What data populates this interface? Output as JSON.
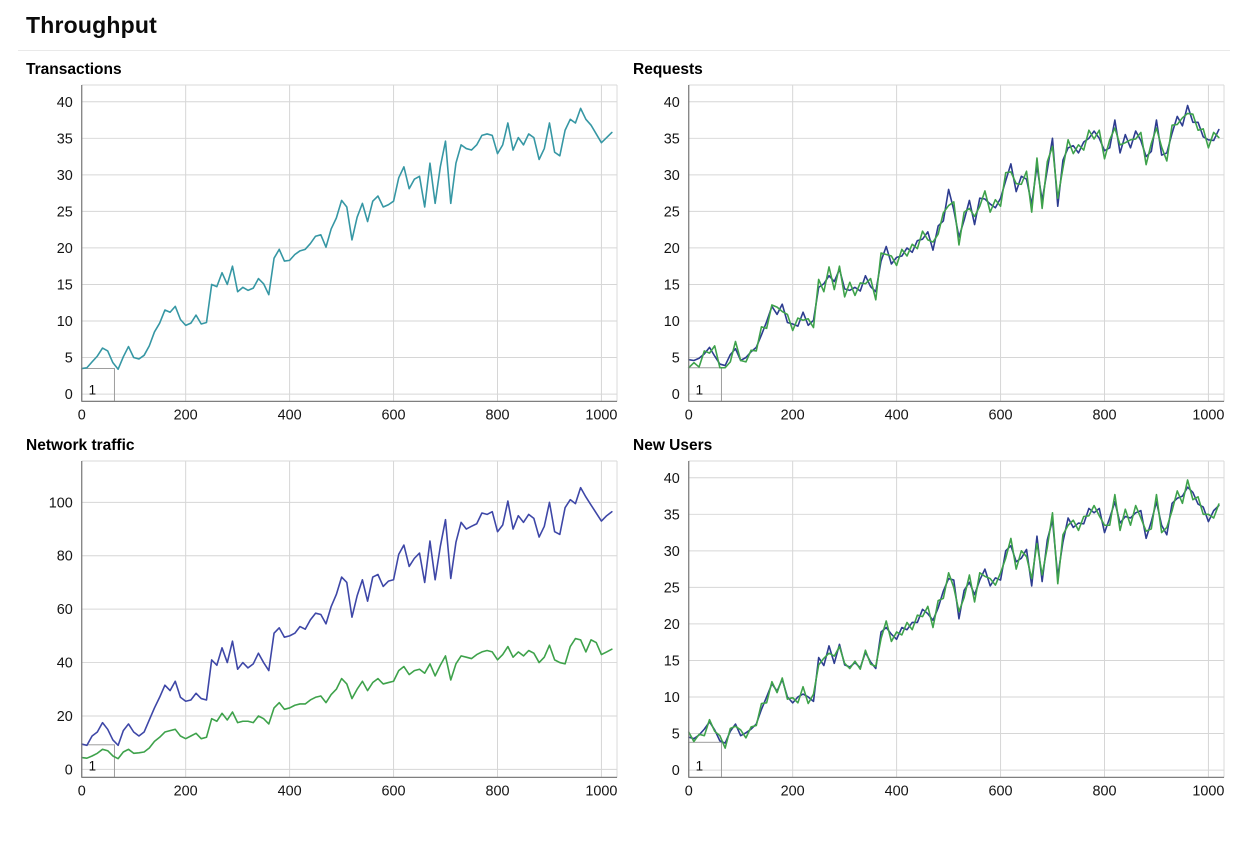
{
  "page": {
    "title": "Throughput"
  },
  "chart_data": [
    {
      "id": "transactions",
      "title": "Transactions",
      "type": "line",
      "grid": true,
      "legend": null,
      "x_axis": {
        "min": 0,
        "max": 1030,
        "ticks": [
          0,
          200,
          400,
          600,
          800,
          1000
        ]
      },
      "y_axis": {
        "min": -1,
        "max": 42.3,
        "ticks": [
          0,
          5,
          10,
          15,
          20,
          25,
          30,
          35,
          40
        ]
      },
      "region": {
        "label": "1",
        "x_start": 0,
        "x_end": 63,
        "y_top": 3.5
      },
      "x_start": 0,
      "x_step": 10,
      "series": [
        {
          "name": "series-1",
          "color": "#3697a4",
          "values": [
            3.5,
            3.6,
            4.4,
            5.2,
            6.3,
            5.9,
            4.3,
            3.4,
            5.1,
            6.5,
            5.0,
            4.8,
            5.3,
            6.6,
            8.5,
            9.7,
            11.5,
            11.2,
            12.0,
            10.2,
            9.4,
            9.7,
            10.8,
            9.6,
            9.8,
            15.0,
            14.7,
            16.6,
            15.0,
            17.5,
            14.0,
            14.6,
            14.2,
            14.5,
            15.8,
            15.1,
            13.6,
            18.6,
            19.8,
            18.2,
            18.3,
            19.1,
            19.6,
            19.8,
            20.6,
            21.6,
            21.8,
            20.1,
            22.6,
            24.1,
            26.5,
            25.6,
            21.1,
            24.2,
            26.1,
            23.6,
            26.4,
            27.1,
            25.6,
            25.9,
            26.4,
            29.6,
            31.1,
            28.1,
            29.4,
            29.8,
            25.6,
            31.6,
            26.1,
            31.1,
            34.6,
            26.1,
            31.6,
            34.1,
            33.6,
            33.4,
            34.1,
            35.4,
            35.6,
            35.4,
            32.9,
            34.1,
            37.1,
            33.4,
            35.1,
            34.1,
            35.6,
            35.1,
            32.1,
            33.6,
            37.1,
            33.1,
            32.6,
            36.1,
            37.6,
            37.1,
            39.1,
            37.6,
            36.8,
            35.6,
            34.4,
            35.1,
            35.8
          ]
        }
      ]
    },
    {
      "id": "requests",
      "title": "Requests",
      "type": "line",
      "grid": true,
      "legend": null,
      "x_axis": {
        "min": 0,
        "max": 1030,
        "ticks": [
          0,
          200,
          400,
          600,
          800,
          1000
        ]
      },
      "y_axis": {
        "min": -1,
        "max": 42.3,
        "ticks": [
          0,
          5,
          10,
          15,
          20,
          25,
          30,
          35,
          40
        ]
      },
      "region": {
        "label": "1",
        "x_start": 0,
        "x_end": 63,
        "y_top": 3.6
      },
      "x_start": 0,
      "x_step": 10,
      "series": [
        {
          "name": "series-1",
          "color": "#2d3c90",
          "values": [
            4.7,
            4.6,
            4.9,
            5.5,
            6.4,
            5.2,
            4.1,
            3.9,
            5.4,
            6.2,
            4.6,
            5.0,
            5.8,
            6.4,
            8.1,
            9.9,
            12.0,
            10.9,
            12.3,
            9.8,
            9.6,
            9.3,
            11.2,
            9.4,
            10.1,
            14.6,
            15.1,
            16.2,
            15.4,
            17.1,
            14.4,
            14.2,
            14.6,
            14.1,
            16.2,
            14.7,
            14.0,
            18.2,
            20.2,
            17.8,
            18.7,
            18.9,
            20.0,
            19.4,
            21.0,
            21.2,
            22.2,
            19.7,
            23.0,
            23.7,
            28.0,
            25.2,
            21.5,
            23.8,
            26.5,
            23.2,
            26.8,
            26.7,
            26.0,
            25.5,
            26.8,
            29.2,
            31.5,
            27.7,
            29.8,
            29.4,
            26.0,
            31.2,
            26.5,
            30.7,
            35.0,
            25.7,
            32.0,
            33.7,
            34.0,
            33.0,
            34.5,
            35.0,
            36.0,
            35.0,
            33.3,
            33.7,
            37.5,
            33.0,
            35.5,
            33.7,
            36.0,
            34.7,
            32.5,
            33.2,
            37.5,
            32.7,
            33.0,
            35.7,
            38.0,
            36.7,
            39.5,
            37.2,
            37.2,
            35.2,
            34.8,
            34.7,
            36.2
          ]
        },
        {
          "name": "series-2",
          "color": "#3ea24b",
          "values": [
            3.6,
            4.3,
            3.7,
            5.9,
            5.6,
            6.6,
            3.6,
            3.6,
            4.4,
            7.2,
            4.6,
            4.4,
            6.0,
            5.9,
            9.2,
            9.0,
            12.2,
            11.9,
            11.3,
            10.9,
            8.7,
            10.4,
            10.1,
            10.3,
            9.1,
            15.7,
            14.0,
            17.4,
            14.3,
            17.5,
            13.3,
            15.3,
            13.5,
            15.2,
            15.1,
            15.8,
            12.9,
            19.3,
            19.1,
            18.9,
            17.6,
            19.8,
            18.9,
            20.5,
            19.9,
            22.3,
            21.1,
            20.8,
            21.9,
            24.8,
            25.8,
            26.3,
            20.4,
            24.9,
            25.4,
            24.3,
            25.7,
            27.8,
            24.9,
            26.6,
            25.7,
            30.3,
            30.4,
            28.8,
            28.7,
            30.5,
            24.9,
            32.3,
            25.4,
            31.8,
            33.9,
            26.8,
            30.9,
            34.8,
            32.9,
            34.1,
            33.4,
            36.1,
            34.9,
            36.1,
            32.2,
            34.8,
            36.4,
            34.1,
            34.4,
            34.8,
            34.9,
            35.8,
            31.4,
            34.3,
            36.4,
            33.8,
            31.9,
            36.8,
            36.9,
            37.8,
            38.4,
            38.3,
            36.1,
            36.3,
            33.7,
            35.8,
            35.1
          ]
        }
      ]
    },
    {
      "id": "network-traffic",
      "title": "Network traffic",
      "type": "line",
      "grid": true,
      "legend": null,
      "x_axis": {
        "min": 0,
        "max": 1030,
        "ticks": [
          0,
          200,
          400,
          600,
          800,
          1000
        ]
      },
      "y_axis": {
        "min": -3,
        "max": 115.5,
        "ticks": [
          0,
          20,
          40,
          60,
          80,
          100
        ]
      },
      "region": {
        "label": "1",
        "x_start": 0,
        "x_end": 63,
        "y_top": 9.2
      },
      "x_start": 0,
      "x_step": 10,
      "series": [
        {
          "name": "series-1",
          "color": "#3e47a7",
          "values": [
            9.5,
            9.0,
            12.5,
            14.0,
            17.5,
            15.0,
            11.0,
            9.0,
            14.5,
            17.0,
            14.0,
            12.5,
            14.0,
            18.5,
            23.0,
            27.0,
            31.5,
            29.5,
            33.0,
            27.0,
            25.5,
            26.0,
            28.5,
            26.5,
            26.0,
            41.0,
            39.0,
            45.5,
            40.0,
            48.0,
            37.5,
            40.0,
            38.0,
            39.5,
            43.5,
            40.0,
            37.0,
            51.0,
            53.0,
            49.5,
            50.0,
            51.0,
            53.5,
            52.5,
            56.0,
            58.5,
            58.0,
            54.5,
            61.0,
            65.5,
            72.0,
            70.0,
            57.0,
            65.0,
            71.0,
            63.0,
            72.0,
            73.0,
            68.5,
            70.5,
            71.0,
            80.5,
            84.0,
            76.0,
            79.0,
            81.0,
            70.0,
            85.5,
            71.0,
            83.5,
            93.5,
            71.5,
            85.0,
            92.5,
            90.0,
            91.0,
            92.0,
            96.0,
            95.5,
            96.5,
            89.0,
            91.5,
            100.5,
            90.0,
            95.0,
            92.5,
            95.5,
            94.0,
            87.0,
            91.0,
            100.0,
            89.0,
            88.0,
            98.0,
            101.0,
            99.5,
            105.5,
            102.0,
            99.0,
            96.0,
            93.0,
            95.0,
            96.5
          ]
        },
        {
          "name": "series-2",
          "color": "#3ea24b",
          "values": [
            4.4,
            4.2,
            5.0,
            6.0,
            7.5,
            7.0,
            5.0,
            4.0,
            6.5,
            7.5,
            6.0,
            6.2,
            6.5,
            8.0,
            10.5,
            12.0,
            14.0,
            14.5,
            15.0,
            12.5,
            11.5,
            12.5,
            13.5,
            11.5,
            12.0,
            19.0,
            18.0,
            21.0,
            18.5,
            21.5,
            17.5,
            18.0,
            18.0,
            17.5,
            20.0,
            19.0,
            17.0,
            23.0,
            25.0,
            22.5,
            23.0,
            24.0,
            24.5,
            24.5,
            26.0,
            27.0,
            27.5,
            25.0,
            28.0,
            30.0,
            34.0,
            32.0,
            26.5,
            30.0,
            33.0,
            29.5,
            32.5,
            34.0,
            32.0,
            32.5,
            33.0,
            37.0,
            38.5,
            35.5,
            37.0,
            37.5,
            36.0,
            39.5,
            35.0,
            39.0,
            42.5,
            33.5,
            39.5,
            42.5,
            42.0,
            41.5,
            43.0,
            44.0,
            44.5,
            44.0,
            41.0,
            43.0,
            46.0,
            42.0,
            44.0,
            42.5,
            44.5,
            43.5,
            40.0,
            42.0,
            46.5,
            41.0,
            40.0,
            39.5,
            46.0,
            49.0,
            48.5,
            44.0,
            48.5,
            47.5,
            43.0,
            44.0,
            45.0
          ]
        }
      ]
    },
    {
      "id": "new-users",
      "title": "New Users",
      "type": "line",
      "grid": true,
      "legend": null,
      "x_axis": {
        "min": 0,
        "max": 1030,
        "ticks": [
          0,
          200,
          400,
          600,
          800,
          1000
        ]
      },
      "y_axis": {
        "min": -1,
        "max": 42.3,
        "ticks": [
          0,
          5,
          10,
          15,
          20,
          25,
          30,
          35,
          40
        ]
      },
      "region": {
        "label": "1",
        "x_start": 0,
        "x_end": 63,
        "y_top": 3.8
      },
      "x_start": 0,
      "x_step": 10,
      "series": [
        {
          "name": "series-1",
          "color": "#2d3c90",
          "values": [
            4.5,
            4.3,
            4.8,
            5.6,
            6.6,
            5.5,
            4.0,
            3.7,
            5.3,
            6.3,
            4.7,
            5.1,
            5.6,
            6.3,
            8.3,
            10.0,
            11.8,
            10.8,
            12.4,
            10.0,
            9.2,
            10.0,
            10.4,
            10.0,
            9.4,
            15.4,
            14.3,
            17.0,
            14.6,
            17.2,
            14.4,
            14.1,
            14.7,
            14.0,
            16.1,
            14.8,
            13.9,
            18.9,
            19.5,
            18.6,
            17.9,
            19.5,
            19.2,
            20.2,
            20.2,
            22.0,
            21.4,
            20.5,
            22.2,
            24.5,
            26.2,
            26.0,
            20.7,
            24.6,
            25.7,
            24.0,
            26.0,
            27.5,
            25.2,
            26.3,
            26.0,
            30.0,
            30.7,
            28.5,
            29.0,
            30.2,
            25.2,
            32.0,
            25.8,
            31.5,
            34.2,
            26.5,
            31.2,
            34.5,
            33.2,
            33.8,
            33.7,
            35.8,
            35.2,
            35.8,
            32.5,
            34.5,
            36.7,
            33.8,
            34.7,
            34.5,
            35.2,
            35.5,
            31.7,
            34.0,
            36.7,
            33.5,
            32.2,
            36.5,
            37.2,
            37.5,
            38.7,
            38.0,
            36.4,
            36.0,
            34.0,
            35.5,
            36.2
          ]
        },
        {
          "name": "series-2",
          "color": "#3ea24b",
          "values": [
            5.2,
            3.9,
            4.9,
            4.7,
            6.9,
            5.3,
            4.7,
            3.0,
            5.7,
            6.0,
            5.5,
            4.4,
            5.9,
            6.1,
            9.1,
            9.2,
            12.1,
            10.6,
            12.6,
            9.7,
            9.9,
            9.2,
            11.4,
            9.1,
            10.4,
            14.4,
            15.3,
            16.0,
            15.6,
            16.9,
            14.6,
            13.9,
            14.9,
            13.8,
            16.4,
            14.5,
            14.2,
            18.0,
            20.4,
            17.6,
            18.9,
            18.5,
            20.2,
            19.2,
            21.2,
            21.0,
            22.4,
            19.5,
            23.2,
            23.5,
            27.0,
            25.0,
            21.7,
            23.6,
            26.7,
            23.0,
            27.0,
            26.5,
            26.2,
            25.3,
            27.0,
            29.0,
            31.7,
            27.5,
            30.0,
            29.2,
            26.2,
            31.0,
            26.7,
            30.5,
            35.2,
            25.5,
            32.2,
            33.5,
            34.2,
            32.8,
            34.7,
            34.8,
            36.2,
            34.8,
            33.5,
            33.5,
            37.7,
            32.8,
            35.7,
            33.5,
            36.2,
            34.5,
            32.7,
            33.0,
            37.7,
            32.5,
            33.2,
            35.5,
            38.2,
            36.5,
            39.7,
            37.0,
            37.4,
            35.0,
            35.0,
            34.5,
            36.4
          ]
        }
      ]
    }
  ]
}
